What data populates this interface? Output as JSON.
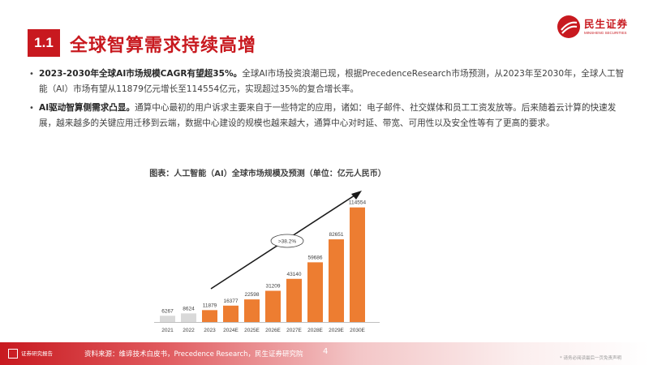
{
  "section": {
    "number": "1.1",
    "title": "全球智算需求持续高增"
  },
  "logo": {
    "name": "民生证券",
    "sub": "MINSHENG SECURITIES"
  },
  "bullets": [
    {
      "bold": "2023-2030年全球AI市场规模CAGR有望超35%。",
      "text": "全球AI市场投资浪潮已现，根据PrecedenceResearch市场预测，从2023年至2030年，全球人工智能（AI）市场有望从11879亿元增长至114554亿元，实现超过35%的复合增长率。"
    },
    {
      "bold": "AI驱动智算侧需求凸显。",
      "text": "通算中心最初的用户诉求主要来自于一些特定的应用，诸如：电子邮件、社交媒体和员工工资发放等。后来随着云计算的快速发展，越来越多的关键应用迁移到云端，数据中心建设的规模也越来越大，通算中心对时延、带宽、可用性以及安全性等有了更高的要求。"
    }
  ],
  "chart_title": "图表：人工智能（AI）全球市场规模及预测（单位：亿元人民币）",
  "chart_data": {
    "type": "bar",
    "title": "图表：人工智能（AI）全球市场规模及预测（单位：亿元人民币）",
    "categories": [
      "2021",
      "2022",
      "2023",
      "2024E",
      "2025E",
      "2026E",
      "2027E",
      "2028E",
      "2029E",
      "2030E"
    ],
    "values": [
      6267,
      8624,
      11879,
      16377,
      22598,
      31209,
      43140,
      59686,
      82651,
      114554
    ],
    "colors": [
      "#d9d9d9",
      "#d9d9d9",
      "#ed7d31",
      "#ed7d31",
      "#ed7d31",
      "#ed7d31",
      "#ed7d31",
      "#ed7d31",
      "#ed7d31",
      "#ed7d31"
    ],
    "annotation": ">38.2%",
    "ylim": [
      0,
      120000
    ]
  },
  "footer": {
    "brand": "证券研究报告",
    "source": "资料来源：维谛技术白皮书，Precedence Research，民生证券研究院",
    "page": "4",
    "disclaimer": "* 请务必阅读最后一页免责声明"
  }
}
